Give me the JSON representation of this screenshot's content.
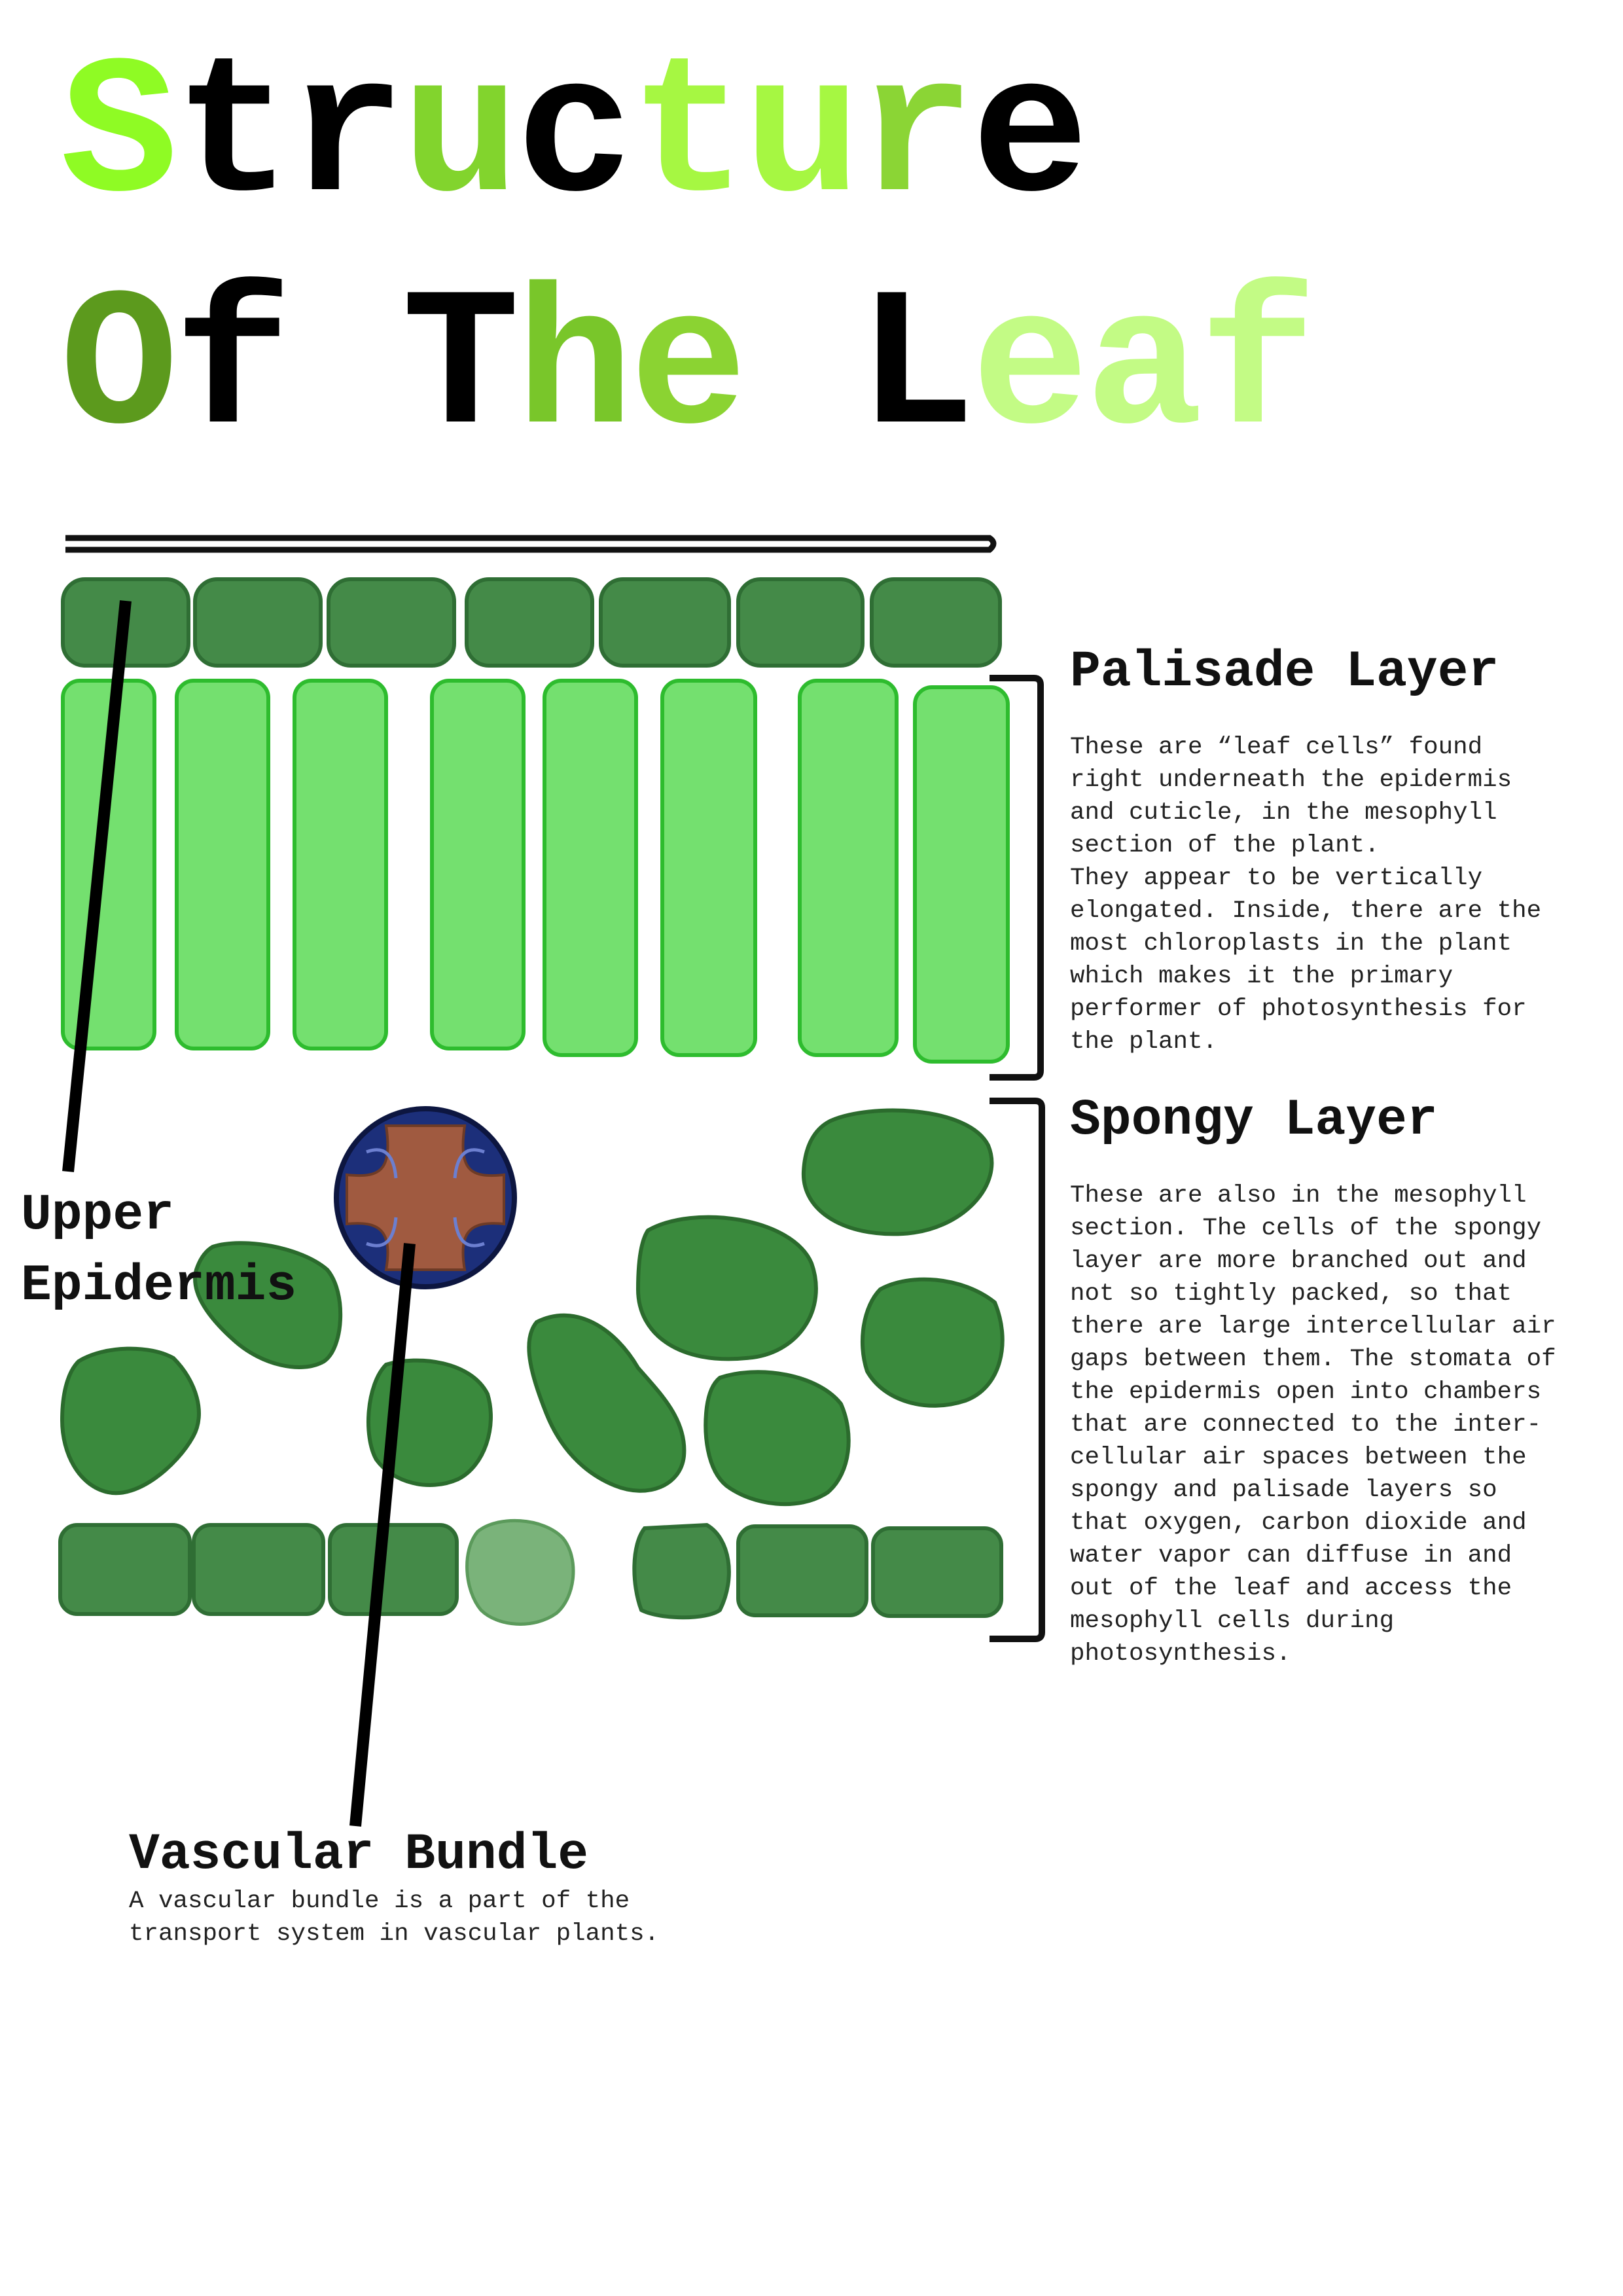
{
  "title": {
    "line1": [
      {
        "text": "S",
        "color": "#8ffb24"
      },
      {
        "text": "tr",
        "color": "#000000"
      },
      {
        "text": "u",
        "color": "#82d42d"
      },
      {
        "text": "c",
        "color": "#000000"
      },
      {
        "text": "tu",
        "color": "#a6f742"
      },
      {
        "text": "r",
        "color": "#8bd535"
      },
      {
        "text": "e",
        "color": "#000000"
      }
    ],
    "line2": [
      {
        "text": "O",
        "color": "#5c9a1d"
      },
      {
        "text": "f ",
        "color": "#000000"
      },
      {
        "text": "T",
        "color": "#000000"
      },
      {
        "text": "h",
        "color": "#79c62a"
      },
      {
        "text": "e",
        "color": "#8bd332"
      },
      {
        "text": " ",
        "color": "#000000"
      },
      {
        "text": "L",
        "color": "#000000"
      },
      {
        "text": "eaf",
        "color": "#c3fb85"
      }
    ]
  },
  "labels": {
    "palisade": {
      "heading": "Palisade Layer",
      "text": "These are “leaf cells” found\nright underneath the epidermis\nand cuticle, in the mesophyll\nsection of the plant.\nThey appear to be vertically\nelongated. Inside, there are the\nmost chloroplasts in the plant\nwhich makes it the primary\nperformer of photosynthesis for\nthe plant."
    },
    "spongy": {
      "heading": "Spongy Layer",
      "text": "These are also in the mesophyll\nsection. The cells of the spongy\nlayer are more branched out and\nnot so tightly packed, so that\nthere are large intercellular air\ngaps between them. The stomata of\nthe epidermis open into chambers\nthat are connected to the inter-\ncellular air spaces between the\nspongy and palisade layers so\nthat oxygen, carbon dioxide and\nwater vapor can diffuse in and\nout of the leaf and access the\nmesophyll cells during\nphotosynthesis."
    },
    "upper_epidermis": "Upper\nEpidermis",
    "vascular": {
      "heading": "Vascular Bundle",
      "text": "A vascular bundle is a part of the\ntransport system in vascular plants."
    }
  },
  "colors": {
    "epidermis_cell": "#448a48",
    "epidermis_stroke": "#2f6e34",
    "palisade_fill": "#74e06f",
    "palisade_stroke": "#2ebc2e",
    "spongy_fill": "#3a8a3d",
    "spongy_stroke": "#2b6b2d",
    "guard_cell": "#7ab37a",
    "vascular_ring": "#1c2f7a",
    "vascular_core": "#a05a40",
    "pointer_line": "#000000"
  }
}
